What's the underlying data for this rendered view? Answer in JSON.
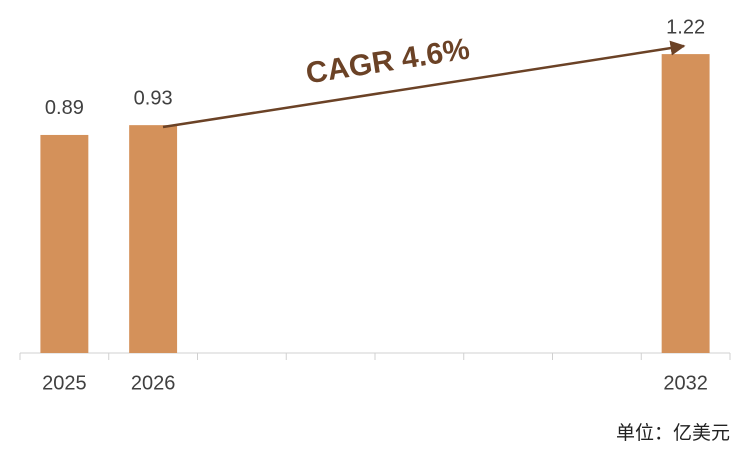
{
  "chart_data": {
    "type": "bar",
    "categories": [
      "2025",
      "2026",
      null,
      null,
      null,
      null,
      null,
      "2032"
    ],
    "values": [
      0.89,
      0.93,
      null,
      null,
      null,
      null,
      null,
      1.22
    ],
    "color": "#d4915a",
    "ylim": [
      0,
      1.4
    ],
    "annotation": "CAGR 4.6%",
    "unit": "单位：亿美元"
  }
}
